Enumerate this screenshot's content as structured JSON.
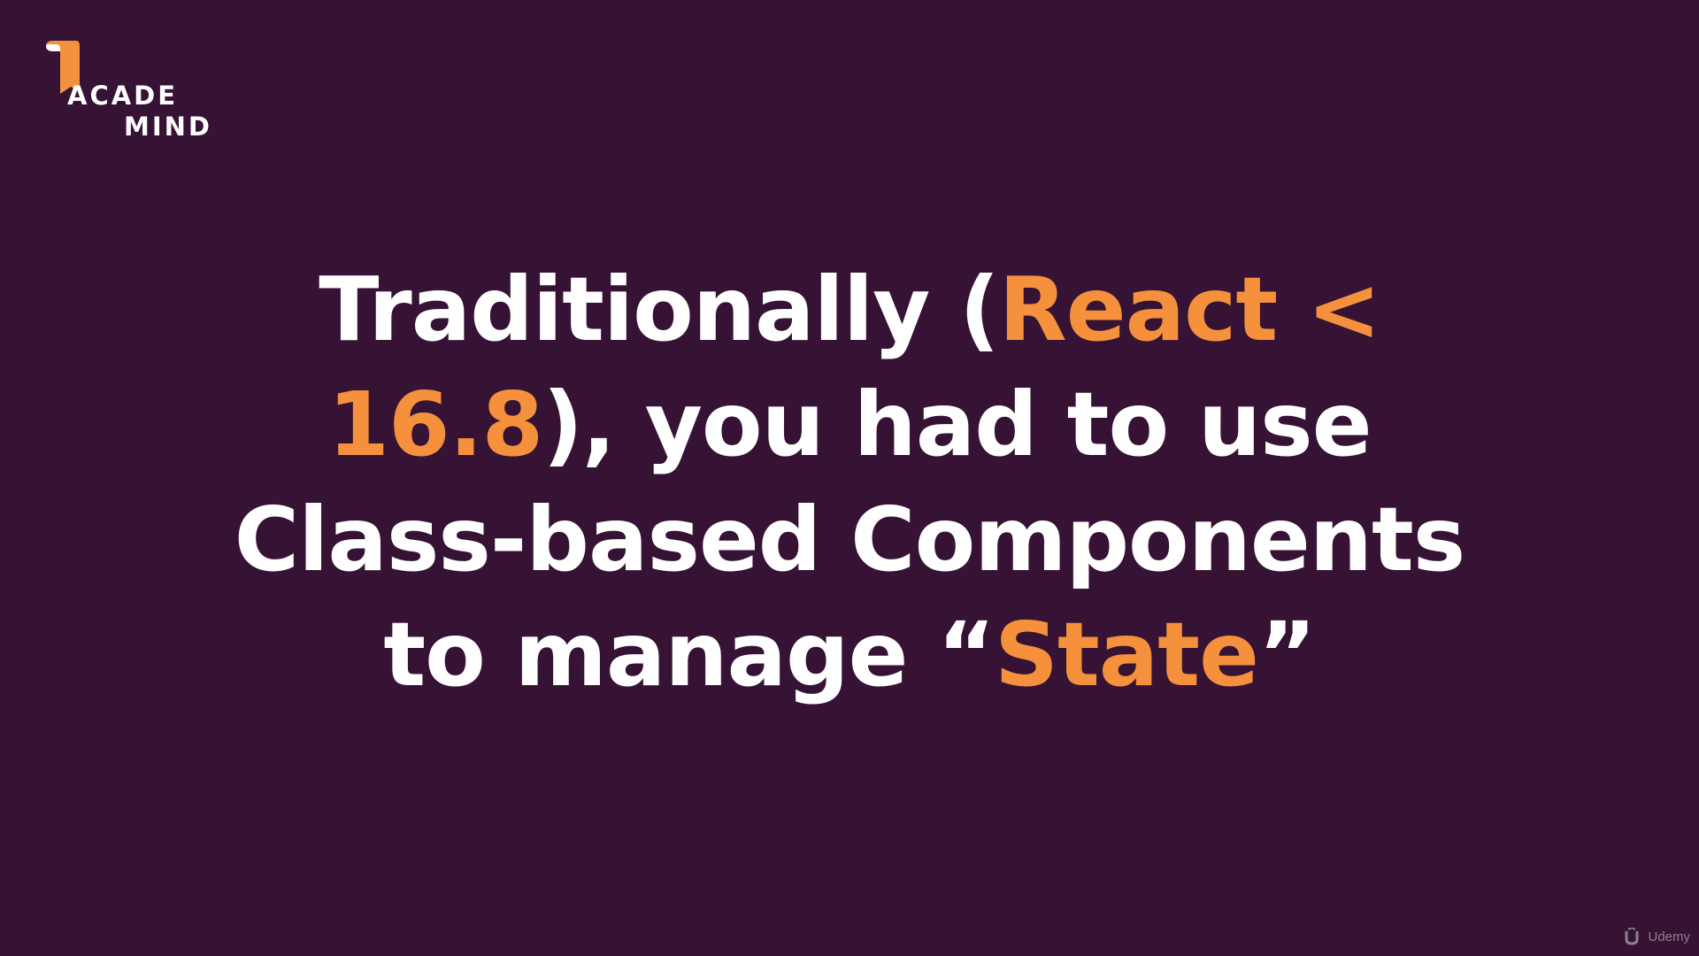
{
  "logo": {
    "line1": "ACADE",
    "line2": "MIND",
    "color": "#f5913c"
  },
  "slide": {
    "segments": [
      {
        "text": "Traditionally (",
        "highlight": false
      },
      {
        "text": "React <",
        "highlight": true
      },
      {
        "text": "16.8",
        "highlight": true
      },
      {
        "text": "), you had to use",
        "highlight": false
      },
      {
        "text": "Class-based Components",
        "highlight": false
      },
      {
        "text": "to manage “",
        "highlight": false
      },
      {
        "text": "State",
        "highlight": true
      },
      {
        "text": "”",
        "highlight": false
      }
    ]
  },
  "watermark": {
    "label": "Udemy"
  },
  "colors": {
    "background": "#361334",
    "text": "#ffffff",
    "accent": "#f5913c"
  }
}
